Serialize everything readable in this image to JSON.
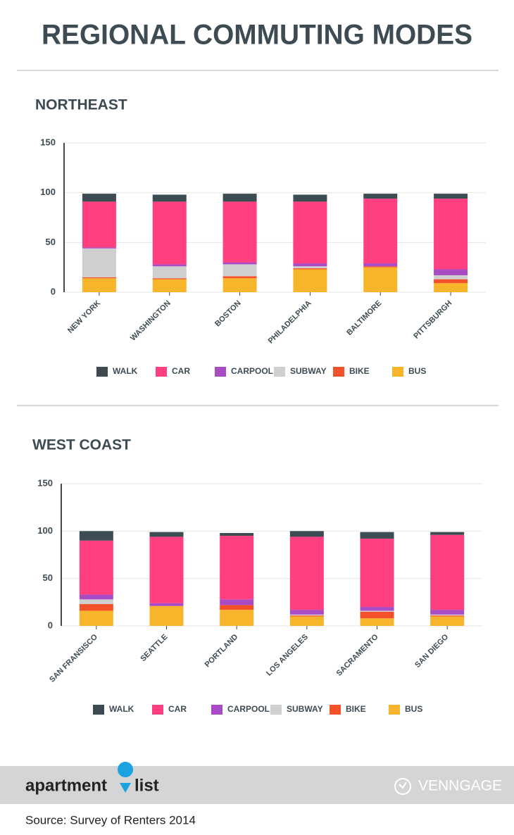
{
  "page_title": "REGIONAL COMMUTING MODES",
  "chart_data": [
    {
      "type": "bar",
      "stacked": true,
      "grid": true,
      "title": "NORTHEAST",
      "categories": [
        "NEW YORK",
        "WASHINGTON",
        "BOSTON",
        "PHILADELPHIA",
        "BALTIMORE",
        "PITTSBURGH"
      ],
      "ylim": [
        0,
        150
      ],
      "yticks": [
        0,
        50,
        100,
        150
      ],
      "series": [
        {
          "name": "WALK",
          "color": "#3d4b53",
          "values": [
            8,
            7,
            8,
            7,
            5,
            5
          ]
        },
        {
          "name": "CAR",
          "color": "#ff3f7f",
          "values": [
            46,
            63,
            61,
            62,
            65,
            71
          ]
        },
        {
          "name": "CARPOOL",
          "color": "#a94bc4",
          "values": [
            1,
            2,
            2,
            3,
            3,
            6
          ]
        },
        {
          "name": "SUBWAY",
          "color": "#cfcfcf",
          "values": [
            29,
            12,
            12,
            2,
            0,
            4
          ]
        },
        {
          "name": "BIKE",
          "color": "#f4502a",
          "values": [
            1,
            1,
            2,
            1,
            1,
            4
          ]
        },
        {
          "name": "BUS",
          "color": "#f7b52c",
          "values": [
            14,
            13,
            14,
            23,
            25,
            9
          ]
        }
      ]
    },
    {
      "type": "bar",
      "stacked": true,
      "grid": true,
      "title": "WEST COAST",
      "categories": [
        "SAN FRANSISCO",
        "SEATTLE",
        "PORTLAND",
        "LOS ANGELES",
        "SACRAMENTO",
        "SAN DIEGO"
      ],
      "ylim": [
        0,
        150
      ],
      "yticks": [
        0,
        50,
        100,
        150
      ],
      "series": [
        {
          "name": "WALK",
          "color": "#3d4b53",
          "values": [
            10,
            5,
            3,
            6,
            7,
            3
          ]
        },
        {
          "name": "CAR",
          "color": "#ff3f7f",
          "values": [
            57,
            70,
            67,
            77,
            72,
            79
          ]
        },
        {
          "name": "CARPOOL",
          "color": "#a94bc4",
          "values": [
            5,
            3,
            6,
            5,
            4,
            5
          ]
        },
        {
          "name": "SUBWAY",
          "color": "#cfcfcf",
          "values": [
            5,
            0,
            0,
            1,
            1,
            1
          ]
        },
        {
          "name": "BIKE",
          "color": "#f4502a",
          "values": [
            7,
            0,
            5,
            1,
            7,
            1
          ]
        },
        {
          "name": "BUS",
          "color": "#f7b52c",
          "values": [
            16,
            21,
            17,
            10,
            8,
            10
          ]
        }
      ]
    }
  ],
  "brand": [
    "apartment",
    "list"
  ],
  "partner": "VENNGAGE",
  "source": "Source: Survey of Renters 2014"
}
